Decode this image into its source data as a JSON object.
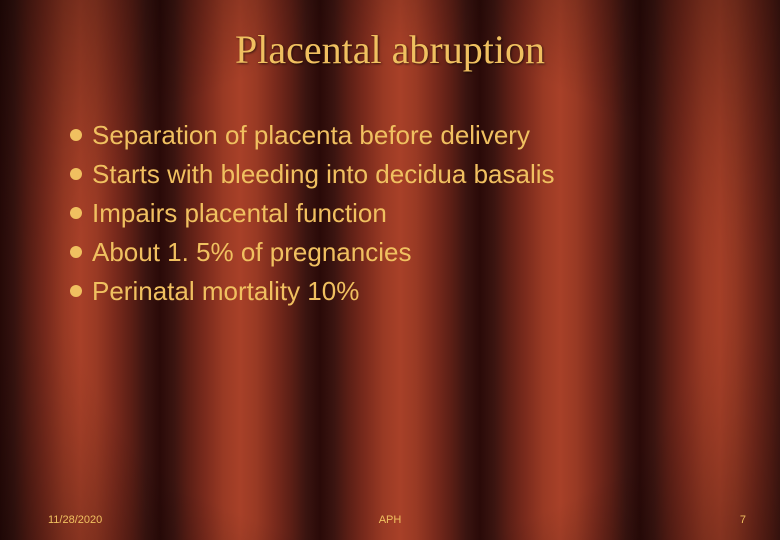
{
  "slide": {
    "background_colors": {
      "curtain_dark": "#2a0a08",
      "curtain_mid": "#7a2a1c",
      "curtain_light": "#a84028",
      "vignette": "#000000"
    },
    "title": {
      "text": "Placental abruption",
      "color": "#f0c060",
      "font_family": "Times New Roman",
      "font_size_pt": 30
    },
    "bullets": {
      "color": "#f0c060",
      "text_color": "#f0c060",
      "font_family": "Tahoma",
      "font_size_pt": 20,
      "items": [
        "Separation of placenta before delivery",
        "Starts with bleeding into decidua basalis",
        "Impairs placental function",
        "About 1. 5% of pregnancies",
        "Perinatal mortality 10%"
      ]
    },
    "footer": {
      "date": "11/28/2020",
      "center": "APH",
      "page": "7",
      "color": "#f0c060",
      "font_size_pt": 8
    }
  }
}
